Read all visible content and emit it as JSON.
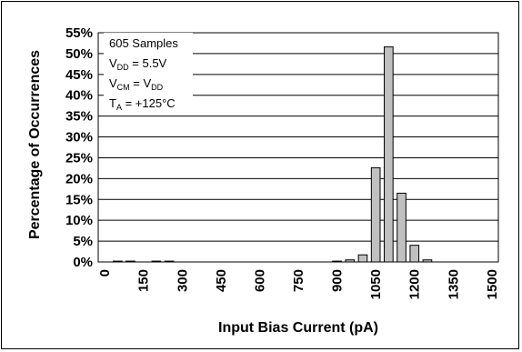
{
  "chart_data": {
    "type": "bar",
    "xlabel": "Input Bias Current (pA)",
    "ylabel": "Percentage of Occurrences",
    "ylim": [
      0,
      55
    ],
    "y_step": 5,
    "y_unit": "%",
    "x_tick_labels": [
      "0",
      "150",
      "300",
      "450",
      "600",
      "750",
      "900",
      "1050",
      "1200",
      "1350",
      "1500"
    ],
    "bin_width": 50,
    "grid": true,
    "categories": [
      0,
      50,
      100,
      150,
      200,
      250,
      300,
      350,
      400,
      450,
      500,
      550,
      600,
      650,
      700,
      750,
      800,
      850,
      900,
      950,
      1000,
      1050,
      1100,
      1150,
      1200,
      1250,
      1300,
      1350,
      1400,
      1450,
      1500
    ],
    "values": [
      0,
      0.2,
      0.2,
      0,
      0.2,
      0.2,
      0,
      0,
      0,
      0,
      0,
      0,
      0,
      0,
      0,
      0,
      0,
      0,
      0.2,
      0.5,
      1.7,
      22.6,
      51.6,
      16.5,
      4.0,
      0.5,
      0,
      0,
      0,
      0,
      0
    ],
    "annotation": {
      "samples": "605 Samples",
      "vdd": {
        "main": "V",
        "sub": "DD",
        "rest": " = 5.5V"
      },
      "vcm": {
        "main": "V",
        "sub": "CM",
        "mid": " = V",
        "sub2": "DD"
      },
      "ta": {
        "main": "T",
        "sub": "A",
        "rest": " = +125°C"
      }
    }
  }
}
